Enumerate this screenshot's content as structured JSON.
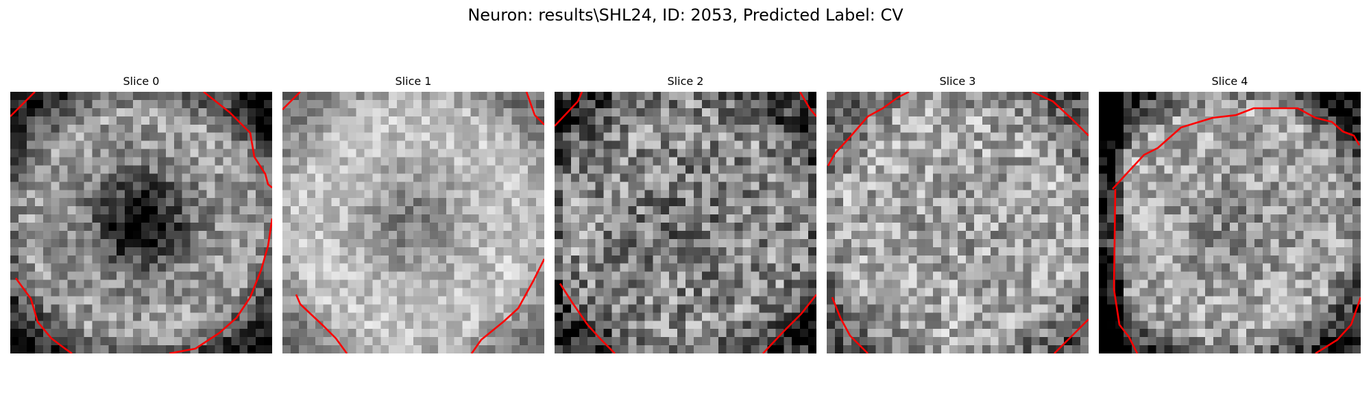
{
  "figure": {
    "title": "Neuron: results\\SHL24, ID: 2053, Predicted Label: CV",
    "contour_color": "#ff0000",
    "colormap": "grayscale",
    "slices": [
      {
        "label": "Slice 0"
      },
      {
        "label": "Slice 1"
      },
      {
        "label": "Slice 2"
      },
      {
        "label": "Slice 3"
      },
      {
        "label": "Slice 4"
      }
    ]
  }
}
